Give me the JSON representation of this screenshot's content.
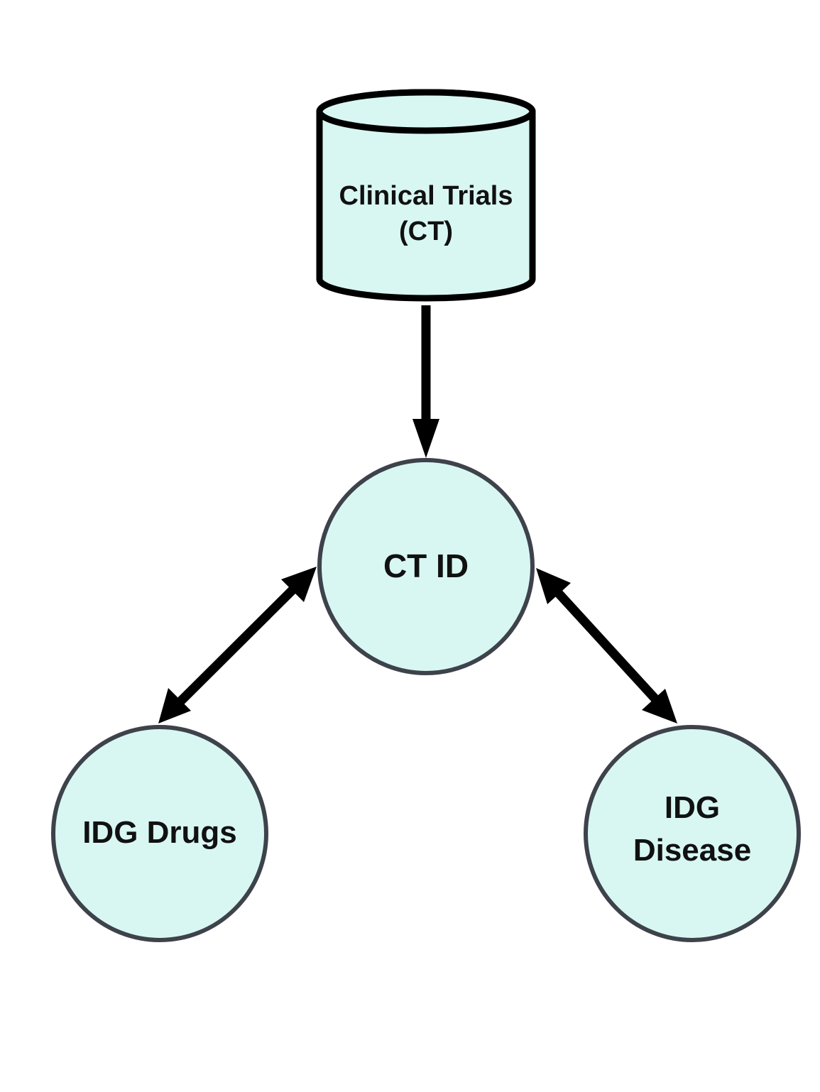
{
  "colors": {
    "node_fill": "#d8f7f2",
    "db_stroke": "#000000",
    "circle_stroke": "#3d424b",
    "arrow": "#000000",
    "background": "#ffffff"
  },
  "nodes": {
    "database": {
      "icon": "database-cylinder-icon",
      "line1": "Clinical Trials",
      "line2": "(CT)"
    },
    "ct_id": {
      "label": "CT ID"
    },
    "idg_drugs": {
      "label": "IDG Drugs"
    },
    "idg_disease": {
      "line1": "IDG",
      "line2": "Disease"
    }
  },
  "edges": [
    {
      "from": "Clinical Trials (CT)",
      "to": "CT ID",
      "direction": "one-way"
    },
    {
      "from": "CT ID",
      "to": "IDG Drugs",
      "direction": "two-way"
    },
    {
      "from": "CT ID",
      "to": "IDG Disease",
      "direction": "two-way"
    }
  ]
}
